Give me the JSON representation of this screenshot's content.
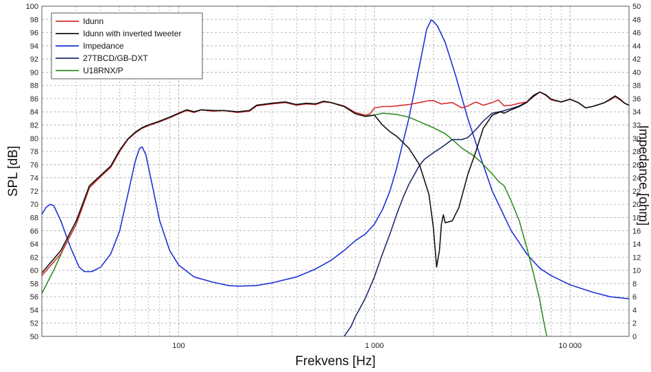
{
  "chart_data": {
    "type": "line",
    "title": "",
    "xlabel": "Frekvens [Hz]",
    "ylabel": "SPL [dB]",
    "y2label": "Impedance [ohm]",
    "xscale": "log",
    "xlim": [
      20,
      20000
    ],
    "ylim": [
      50,
      100
    ],
    "y2lim": [
      0,
      50
    ],
    "grid": true,
    "legend_position": "top-left",
    "x_ticks": [
      {
        "value": 100,
        "label": "100"
      },
      {
        "value": 1000,
        "label": "1 000"
      },
      {
        "value": 10000,
        "label": "10 000"
      }
    ],
    "y_ticks": [
      50,
      52,
      54,
      56,
      58,
      60,
      62,
      64,
      66,
      68,
      70,
      72,
      74,
      76,
      78,
      80,
      82,
      84,
      86,
      88,
      90,
      92,
      94,
      96,
      98,
      100
    ],
    "y2_ticks": [
      0,
      2,
      4,
      6,
      8,
      10,
      12,
      14,
      16,
      18,
      20,
      22,
      24,
      26,
      28,
      30,
      32,
      34,
      36,
      38,
      40,
      42,
      44,
      46,
      48,
      50
    ],
    "series": [
      {
        "name": "Idunn",
        "color": "#d42a2a",
        "axis": "left",
        "points": [
          [
            20,
            59.2
          ],
          [
            25,
            62.5
          ],
          [
            30,
            67
          ],
          [
            35,
            72.5
          ],
          [
            40,
            74.2
          ],
          [
            45,
            75.6
          ],
          [
            50,
            78
          ],
          [
            55,
            79.8
          ],
          [
            60,
            80.8
          ],
          [
            65,
            81.5
          ],
          [
            70,
            81.9
          ],
          [
            80,
            82.5
          ],
          [
            90,
            83.1
          ],
          [
            100,
            83.7
          ],
          [
            110,
            84.2
          ],
          [
            120,
            83.9
          ],
          [
            130,
            84.3
          ],
          [
            150,
            84.1
          ],
          [
            170,
            84.2
          ],
          [
            200,
            83.9
          ],
          [
            230,
            84.1
          ],
          [
            250,
            84.9
          ],
          [
            300,
            85.2
          ],
          [
            350,
            85.4
          ],
          [
            400,
            85.0
          ],
          [
            450,
            85.2
          ],
          [
            500,
            85.1
          ],
          [
            550,
            85.5
          ],
          [
            600,
            85.4
          ],
          [
            700,
            84.9
          ],
          [
            800,
            83.9
          ],
          [
            900,
            83.5
          ],
          [
            950,
            83.7
          ],
          [
            1000,
            84.6
          ],
          [
            1100,
            84.8
          ],
          [
            1200,
            84.8
          ],
          [
            1300,
            84.9
          ],
          [
            1500,
            85.1
          ],
          [
            1700,
            85.4
          ],
          [
            1900,
            85.7
          ],
          [
            2000,
            85.7
          ],
          [
            2200,
            85.2
          ],
          [
            2500,
            85.4
          ],
          [
            2800,
            84.6
          ],
          [
            3000,
            84.9
          ],
          [
            3300,
            85.5
          ],
          [
            3600,
            85.0
          ],
          [
            4000,
            85.4
          ],
          [
            4300,
            85.8
          ],
          [
            4600,
            84.9
          ],
          [
            5000,
            85.0
          ],
          [
            5500,
            85.3
          ],
          [
            6000,
            85.5
          ],
          [
            6500,
            86.3
          ],
          [
            7000,
            87.0
          ],
          [
            7500,
            86.5
          ],
          [
            8000,
            85.8
          ],
          [
            9000,
            85.5
          ],
          [
            10000,
            85.9
          ],
          [
            11000,
            85.4
          ],
          [
            12000,
            84.6
          ],
          [
            13000,
            84.8
          ],
          [
            14000,
            85.1
          ],
          [
            15000,
            85.4
          ],
          [
            16000,
            85.8
          ],
          [
            17000,
            86.3
          ],
          [
            18000,
            85.8
          ],
          [
            19000,
            85.3
          ],
          [
            20000,
            85.0
          ]
        ]
      },
      {
        "name": "Idunn with inverted tweeter",
        "color": "#111111",
        "axis": "left",
        "points": [
          [
            20,
            59.6
          ],
          [
            25,
            63
          ],
          [
            30,
            67.5
          ],
          [
            35,
            72.8
          ],
          [
            40,
            74.4
          ],
          [
            45,
            75.8
          ],
          [
            50,
            78.2
          ],
          [
            55,
            79.9
          ],
          [
            60,
            80.9
          ],
          [
            65,
            81.6
          ],
          [
            70,
            82.0
          ],
          [
            80,
            82.6
          ],
          [
            90,
            83.2
          ],
          [
            100,
            83.8
          ],
          [
            110,
            84.3
          ],
          [
            120,
            84.0
          ],
          [
            130,
            84.3
          ],
          [
            150,
            84.2
          ],
          [
            170,
            84.2
          ],
          [
            200,
            84.0
          ],
          [
            230,
            84.2
          ],
          [
            250,
            85.0
          ],
          [
            300,
            85.3
          ],
          [
            350,
            85.5
          ],
          [
            400,
            85.1
          ],
          [
            450,
            85.3
          ],
          [
            500,
            85.2
          ],
          [
            550,
            85.6
          ],
          [
            600,
            85.4
          ],
          [
            700,
            84.8
          ],
          [
            800,
            83.7
          ],
          [
            900,
            83.3
          ],
          [
            1000,
            83.5
          ],
          [
            1100,
            82.0
          ],
          [
            1200,
            81.0
          ],
          [
            1300,
            80.3
          ],
          [
            1500,
            78.5
          ],
          [
            1700,
            76.0
          ],
          [
            1900,
            71.5
          ],
          [
            2000,
            66.5
          ],
          [
            2080,
            60.5
          ],
          [
            2150,
            63.0
          ],
          [
            2200,
            67.0
          ],
          [
            2250,
            68.4
          ],
          [
            2300,
            67.2
          ],
          [
            2500,
            67.5
          ],
          [
            2700,
            69.5
          ],
          [
            3000,
            74.5
          ],
          [
            3300,
            78.0
          ],
          [
            3600,
            81.5
          ],
          [
            4000,
            83.5
          ],
          [
            4400,
            84.0
          ],
          [
            4600,
            83.8
          ],
          [
            5000,
            84.3
          ],
          [
            5500,
            84.8
          ],
          [
            6000,
            85.4
          ],
          [
            6500,
            86.4
          ],
          [
            7000,
            87.0
          ],
          [
            7500,
            86.6
          ],
          [
            8000,
            85.9
          ],
          [
            9000,
            85.5
          ],
          [
            10000,
            85.9
          ],
          [
            11000,
            85.4
          ],
          [
            12000,
            84.6
          ],
          [
            13000,
            84.8
          ],
          [
            14000,
            85.1
          ],
          [
            15000,
            85.4
          ],
          [
            16000,
            85.9
          ],
          [
            17000,
            86.4
          ],
          [
            18000,
            85.9
          ],
          [
            19000,
            85.3
          ],
          [
            20000,
            85.0
          ]
        ]
      },
      {
        "name": "Impedance",
        "color": "#1c2fd6",
        "axis": "right",
        "points": [
          [
            20,
            18.5
          ],
          [
            21,
            19.5
          ],
          [
            22,
            20.0
          ],
          [
            23,
            19.8
          ],
          [
            25,
            17.5
          ],
          [
            28,
            13.5
          ],
          [
            31,
            10.5
          ],
          [
            33,
            9.8
          ],
          [
            36,
            9.8
          ],
          [
            40,
            10.5
          ],
          [
            45,
            12.5
          ],
          [
            50,
            16
          ],
          [
            55,
            21.5
          ],
          [
            60,
            26.5
          ],
          [
            63,
            28.4
          ],
          [
            65,
            28.7
          ],
          [
            68,
            27.5
          ],
          [
            72,
            24
          ],
          [
            80,
            17.5
          ],
          [
            90,
            13
          ],
          [
            100,
            10.8
          ],
          [
            120,
            9.0
          ],
          [
            150,
            8.2
          ],
          [
            180,
            7.7
          ],
          [
            200,
            7.6
          ],
          [
            250,
            7.7
          ],
          [
            300,
            8.1
          ],
          [
            400,
            9.0
          ],
          [
            500,
            10.2
          ],
          [
            600,
            11.5
          ],
          [
            700,
            13
          ],
          [
            800,
            14.5
          ],
          [
            900,
            15.5
          ],
          [
            1000,
            17
          ],
          [
            1100,
            19.2
          ],
          [
            1200,
            22
          ],
          [
            1300,
            25.5
          ],
          [
            1500,
            33
          ],
          [
            1700,
            41
          ],
          [
            1850,
            46.5
          ],
          [
            1950,
            47.9
          ],
          [
            2000,
            47.7
          ],
          [
            2100,
            47
          ],
          [
            2300,
            44.5
          ],
          [
            2600,
            39.5
          ],
          [
            3000,
            33
          ],
          [
            3500,
            27
          ],
          [
            4000,
            22
          ],
          [
            5000,
            16
          ],
          [
            6000,
            12.5
          ],
          [
            7000,
            10.3
          ],
          [
            8000,
            9.2
          ],
          [
            10000,
            7.8
          ],
          [
            13000,
            6.7
          ],
          [
            16000,
            6.0
          ],
          [
            20000,
            5.7
          ]
        ]
      },
      {
        "name": "27TBCD/GB-DXT",
        "color": "#1c2a6e",
        "axis": "left",
        "points": [
          [
            700,
            50
          ],
          [
            760,
            51.5
          ],
          [
            800,
            53
          ],
          [
            900,
            55.8
          ],
          [
            1000,
            59
          ],
          [
            1100,
            62.5
          ],
          [
            1200,
            65.5
          ],
          [
            1300,
            68.5
          ],
          [
            1400,
            71
          ],
          [
            1500,
            73
          ],
          [
            1600,
            74.5
          ],
          [
            1700,
            75.9
          ],
          [
            1800,
            76.8
          ],
          [
            2000,
            77.8
          ],
          [
            2200,
            78.6
          ],
          [
            2500,
            79.8
          ],
          [
            2800,
            79.8
          ],
          [
            3000,
            80.1
          ],
          [
            3300,
            81.3
          ],
          [
            3600,
            82.6
          ],
          [
            4000,
            83.8
          ],
          [
            4500,
            84.1
          ],
          [
            5000,
            84.5
          ],
          [
            5500,
            84.9
          ],
          [
            6000,
            85.5
          ],
          [
            6500,
            86.5
          ],
          [
            7000,
            87.0
          ],
          [
            7500,
            86.6
          ],
          [
            8000,
            85.9
          ],
          [
            9000,
            85.5
          ],
          [
            10000,
            85.9
          ],
          [
            11000,
            85.4
          ],
          [
            12000,
            84.6
          ],
          [
            13000,
            84.8
          ],
          [
            14000,
            85.1
          ],
          [
            15000,
            85.4
          ],
          [
            16000,
            85.9
          ],
          [
            17000,
            86.4
          ],
          [
            18000,
            85.9
          ],
          [
            19000,
            85.3
          ],
          [
            20000,
            85.0
          ]
        ]
      },
      {
        "name": "U18RNX/P",
        "color": "#2d8c22",
        "axis": "left",
        "points": [
          [
            20,
            56.5
          ],
          [
            23,
            60
          ],
          [
            26,
            63.5
          ],
          [
            30,
            67
          ],
          [
            35,
            72.5
          ],
          [
            40,
            74.4
          ],
          [
            45,
            75.8
          ],
          [
            50,
            78.2
          ],
          [
            55,
            79.9
          ],
          [
            60,
            80.9
          ],
          [
            65,
            81.6
          ],
          [
            70,
            82.0
          ],
          [
            80,
            82.6
          ],
          [
            90,
            83.2
          ],
          [
            100,
            83.8
          ],
          [
            110,
            84.3
          ],
          [
            120,
            84.0
          ],
          [
            130,
            84.3
          ],
          [
            150,
            84.2
          ],
          [
            170,
            84.2
          ],
          [
            200,
            84.0
          ],
          [
            230,
            84.2
          ],
          [
            250,
            85.0
          ],
          [
            300,
            85.3
          ],
          [
            350,
            85.5
          ],
          [
            400,
            85.1
          ],
          [
            450,
            85.3
          ],
          [
            500,
            85.2
          ],
          [
            550,
            85.6
          ],
          [
            600,
            85.4
          ],
          [
            700,
            84.8
          ],
          [
            800,
            83.7
          ],
          [
            900,
            83.4
          ],
          [
            1000,
            83.5
          ],
          [
            1100,
            83.8
          ],
          [
            1300,
            83.6
          ],
          [
            1500,
            83.2
          ],
          [
            1700,
            82.5
          ],
          [
            2000,
            81.6
          ],
          [
            2300,
            80.7
          ],
          [
            2500,
            79.8
          ],
          [
            2800,
            78.5
          ],
          [
            3200,
            77.4
          ],
          [
            3500,
            76.4
          ],
          [
            4000,
            74.6
          ],
          [
            4300,
            73.5
          ],
          [
            4600,
            72.8
          ],
          [
            5000,
            70.5
          ],
          [
            5500,
            67.5
          ],
          [
            6000,
            63.5
          ],
          [
            6500,
            59.5
          ],
          [
            7000,
            55.5
          ],
          [
            7300,
            52.5
          ],
          [
            7600,
            50
          ]
        ]
      }
    ]
  }
}
